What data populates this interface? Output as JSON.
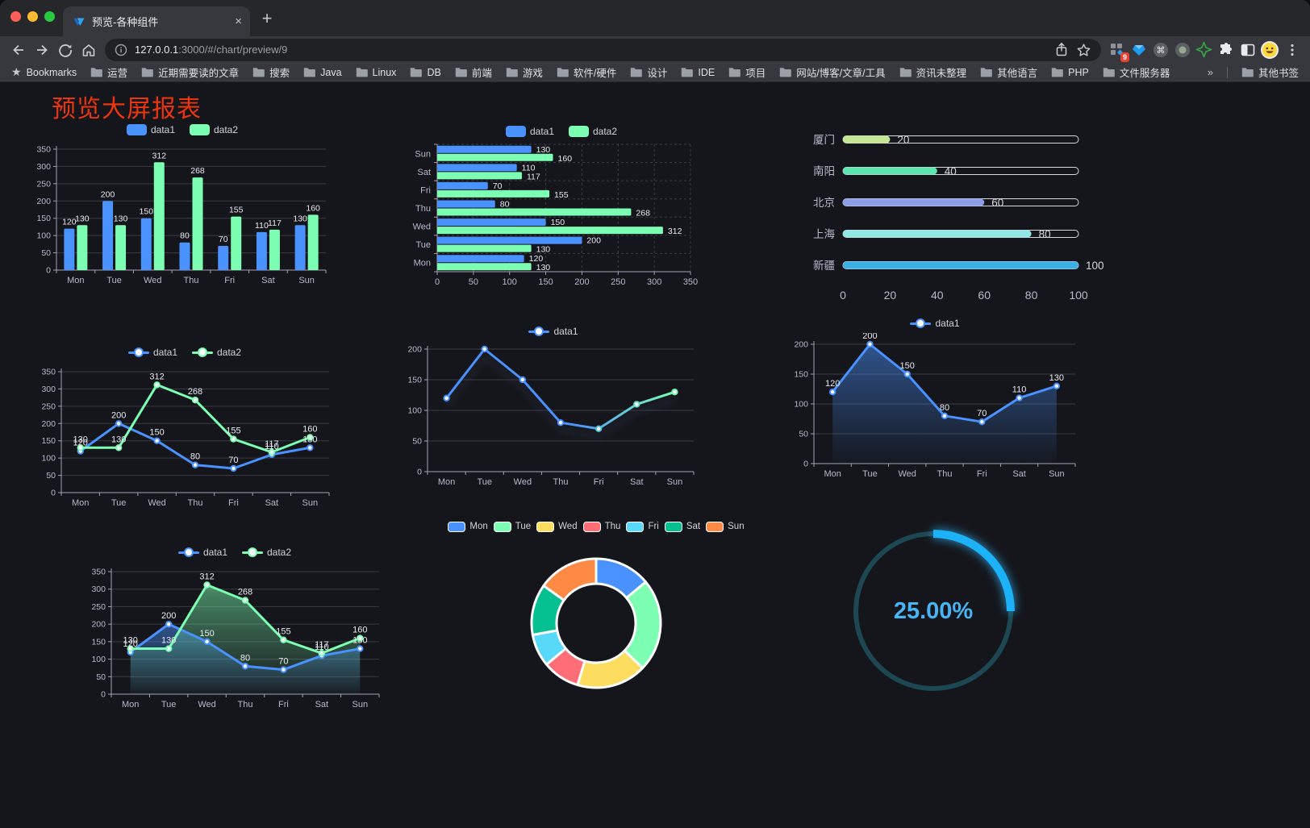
{
  "browser": {
    "tab": {
      "title": "预览-各种组件",
      "close_glyph": "×",
      "new_tab_glyph": "+"
    },
    "url": {
      "host": "127.0.0.1",
      "rest": ":3000/#/chart/preview/9"
    },
    "bookmarks": {
      "star_label": "Bookmarks",
      "folders": [
        "运营",
        "近期需要读的文章",
        "搜索",
        "Java",
        "Linux",
        "DB",
        "前端",
        "游戏",
        "软件/硬件",
        "设计",
        "IDE",
        "项目",
        "网站/博客/文章/工具",
        "资讯未整理",
        "其他语言",
        "PHP",
        "文件服务器"
      ],
      "overflow_glyph": "»",
      "other_label": "其他书签"
    },
    "extension_badge": "9"
  },
  "page": {
    "title": "预览大屏报表",
    "title_color": "#ea350e"
  },
  "chart_data": [
    {
      "id": "c1",
      "type": "bar",
      "categories": [
        "Mon",
        "Tue",
        "Wed",
        "Thu",
        "Fri",
        "Sat",
        "Sun"
      ],
      "series": [
        {
          "name": "data1",
          "color": "#4992ff",
          "values": [
            120,
            200,
            150,
            80,
            70,
            110,
            130
          ]
        },
        {
          "name": "data2",
          "color": "#7cffb2",
          "values": [
            130,
            130,
            312,
            268,
            155,
            117,
            160
          ]
        }
      ],
      "ylim": [
        0,
        350
      ],
      "yticks": [
        0,
        50,
        100,
        150,
        200,
        250,
        300,
        350
      ],
      "legend_position": "top",
      "grid": true
    },
    {
      "id": "c2",
      "type": "hbar",
      "categories": [
        "Mon",
        "Tue",
        "Wed",
        "Thu",
        "Fri",
        "Sat",
        "Sun"
      ],
      "series": [
        {
          "name": "data1",
          "color": "#4992ff",
          "values": [
            120,
            200,
            150,
            80,
            70,
            110,
            130
          ]
        },
        {
          "name": "data2",
          "color": "#7cffb2",
          "values": [
            130,
            130,
            312,
            268,
            155,
            117,
            160
          ]
        }
      ],
      "xlim": [
        0,
        350
      ],
      "xticks": [
        0,
        50,
        100,
        150,
        200,
        250,
        300,
        350
      ],
      "legend_position": "top",
      "grid": true
    },
    {
      "id": "c3",
      "type": "progress-bars",
      "max": 100,
      "items": [
        {
          "label": "厦门",
          "value": 20,
          "color": "#c5e693"
        },
        {
          "label": "南阳",
          "value": 40,
          "color": "#5ce5ae"
        },
        {
          "label": "北京",
          "value": 60,
          "color": "#8d9ee8"
        },
        {
          "label": "上海",
          "value": 80,
          "color": "#90e7e3"
        },
        {
          "label": "新疆",
          "value": 100,
          "color": "#3bb0e2"
        }
      ],
      "xticks": [
        0,
        20,
        40,
        60,
        80,
        100
      ]
    },
    {
      "id": "c4",
      "type": "line",
      "categories": [
        "Mon",
        "Tue",
        "Wed",
        "Thu",
        "Fri",
        "Sat",
        "Sun"
      ],
      "series": [
        {
          "name": "data1",
          "color": "#4992ff",
          "values": [
            120,
            200,
            150,
            80,
            70,
            110,
            130
          ],
          "labels": true
        },
        {
          "name": "data2",
          "color": "#7cffb2",
          "values": [
            130,
            130,
            312,
            268,
            155,
            117,
            160
          ],
          "labels": true
        }
      ],
      "ylim": [
        0,
        350
      ],
      "yticks": [
        0,
        50,
        100,
        150,
        200,
        250,
        300,
        350
      ],
      "legend_position": "top",
      "grid": true
    },
    {
      "id": "c5",
      "type": "line",
      "categories": [
        "Mon",
        "Tue",
        "Wed",
        "Thu",
        "Fri",
        "Sat",
        "Sun"
      ],
      "series": [
        {
          "name": "data1",
          "color": "#4992ff",
          "color_end": "#7cffb2",
          "values": [
            120,
            200,
            150,
            80,
            70,
            110,
            130
          ],
          "shadow": true
        }
      ],
      "ylim": [
        0,
        200
      ],
      "yticks": [
        0,
        50,
        100,
        150,
        200
      ],
      "legend_position": "top",
      "grid": true
    },
    {
      "id": "c6",
      "type": "line",
      "categories": [
        "Mon",
        "Tue",
        "Wed",
        "Thu",
        "Fri",
        "Sat",
        "Sun"
      ],
      "series": [
        {
          "name": "data1",
          "color": "#4992ff",
          "values": [
            120,
            200,
            150,
            80,
            70,
            110,
            130
          ],
          "area": true,
          "labels": true
        }
      ],
      "ylim": [
        0,
        200
      ],
      "yticks": [
        0,
        50,
        100,
        150,
        200
      ],
      "legend_position": "top",
      "grid": true
    },
    {
      "id": "c7",
      "type": "line",
      "categories": [
        "Mon",
        "Tue",
        "Wed",
        "Thu",
        "Fri",
        "Sat",
        "Sun"
      ],
      "series": [
        {
          "name": "data1",
          "color": "#4992ff",
          "values": [
            120,
            200,
            150,
            80,
            70,
            110,
            130
          ],
          "area": true,
          "labels": true
        },
        {
          "name": "data2",
          "color": "#7cffb2",
          "values": [
            130,
            130,
            312,
            268,
            155,
            117,
            160
          ],
          "area": true,
          "labels": true
        }
      ],
      "ylim": [
        0,
        350
      ],
      "yticks": [
        0,
        50,
        100,
        150,
        200,
        250,
        300,
        350
      ],
      "legend_position": "top",
      "grid": true
    },
    {
      "id": "c8",
      "type": "donut",
      "legend": [
        "Mon",
        "Tue",
        "Wed",
        "Thu",
        "Fri",
        "Sat",
        "Sun"
      ],
      "values": [
        120,
        200,
        150,
        80,
        70,
        110,
        130
      ],
      "colors": [
        "#4992ff",
        "#7cffb2",
        "#fddd60",
        "#ff6e76",
        "#58d9f9",
        "#05c091",
        "#ff8a45"
      ],
      "border_color": "#ffffff",
      "legend_position": "top"
    },
    {
      "id": "c9",
      "type": "gauge",
      "value": 25,
      "label": "25.00%",
      "color": "#1db2f7",
      "track_color": "#1d4752",
      "text_color": "#47b4f3"
    }
  ]
}
